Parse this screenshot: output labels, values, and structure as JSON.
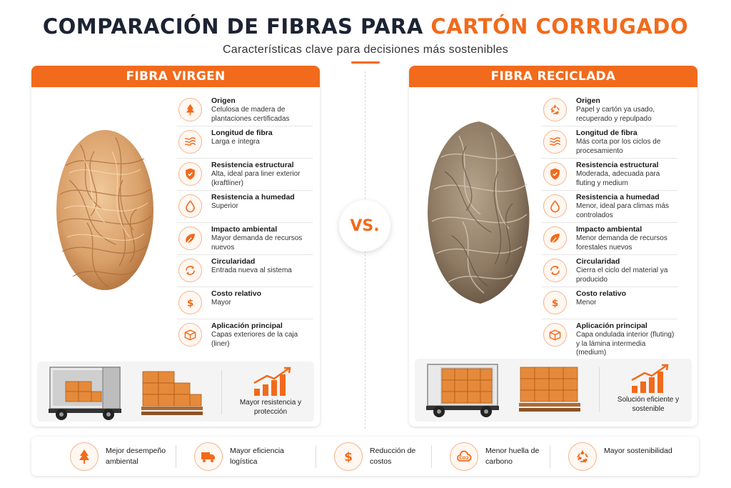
{
  "title": {
    "main": "COMPARACIÓN DE FIBRAS PARA ",
    "accent": "CARTÓN CORRUGADO"
  },
  "subtitle": "Características clave para decisiones más sostenibles",
  "vs_label": "VS.",
  "colors": {
    "accent": "#f26a1b",
    "title": "#1c2333",
    "icon_border": "#f5b48c"
  },
  "virgin": {
    "header": "FIBRA VIRGEN",
    "features": [
      {
        "icon": "tree-icon",
        "name": "Origen",
        "desc": "Celulosa de madera de plantaciones certificadas"
      },
      {
        "icon": "wave-lines-icon",
        "name": "Longitud de fibra",
        "desc": "Larga e íntegra"
      },
      {
        "icon": "shield-icon",
        "name": "Resistencia estructural",
        "desc": "Alta, ideal para liner exterior (kraftliner)"
      },
      {
        "icon": "water-drop-icon",
        "name": "Resistencia a humedad",
        "desc": "Superior"
      },
      {
        "icon": "leaf-icon",
        "name": "Impacto ambiental",
        "desc": "Mayor demanda de recursos nuevos"
      },
      {
        "icon": "cycle-icon",
        "name": "Circularidad",
        "desc": "Entrada nueva al sistema"
      },
      {
        "icon": "dollar-icon",
        "name": "Costo relativo",
        "desc": "Mayor"
      },
      {
        "icon": "box-icon",
        "name": "Aplicación principal",
        "desc": "Capas exteriores de la caja (liner)"
      }
    ],
    "strip_caption": "Mayor resistencia y protección"
  },
  "recycled": {
    "header": "FIBRA RECICLADA",
    "features": [
      {
        "icon": "recycle-icon",
        "name": "Origen",
        "desc": "Papel y cartón ya usado, recuperado y repulpado"
      },
      {
        "icon": "wave-lines-icon",
        "name": "Longitud de fibra",
        "desc": "Más corta por los ciclos de procesamiento"
      },
      {
        "icon": "shield-icon",
        "name": "Resistencia estructural",
        "desc": "Moderada, adecuada para fluting y medium"
      },
      {
        "icon": "water-drop-icon",
        "name": "Resistencia a humedad",
        "desc": "Menor, ideal para climas más controlados"
      },
      {
        "icon": "leaf-icon",
        "name": "Impacto ambiental",
        "desc": "Menor demanda de recursos forestales nuevos"
      },
      {
        "icon": "cycle-icon",
        "name": "Circularidad",
        "desc": "Cierra el ciclo del material ya producido"
      },
      {
        "icon": "dollar-icon",
        "name": "Costo relativo",
        "desc": "Menor"
      },
      {
        "icon": "box-icon",
        "name": "Aplicación principal",
        "desc": "Capa ondulada interior (fluting) y la lámina intermedia (medium)"
      }
    ],
    "strip_caption": "Solución eficiente y sostenible"
  },
  "benefits": [
    {
      "icon": "tree-icon",
      "text": "Mejor desempeño ambiental"
    },
    {
      "icon": "truck-icon",
      "text": "Mayor eficiencia logística"
    },
    {
      "icon": "dollar-icon",
      "text": "Reducción de costos"
    },
    {
      "icon": "co2-cloud-icon",
      "text": "Menor huella de carbono",
      "badge": "CO2"
    },
    {
      "icon": "recycle-icon",
      "text": "Mayor sostenibilidad"
    }
  ]
}
